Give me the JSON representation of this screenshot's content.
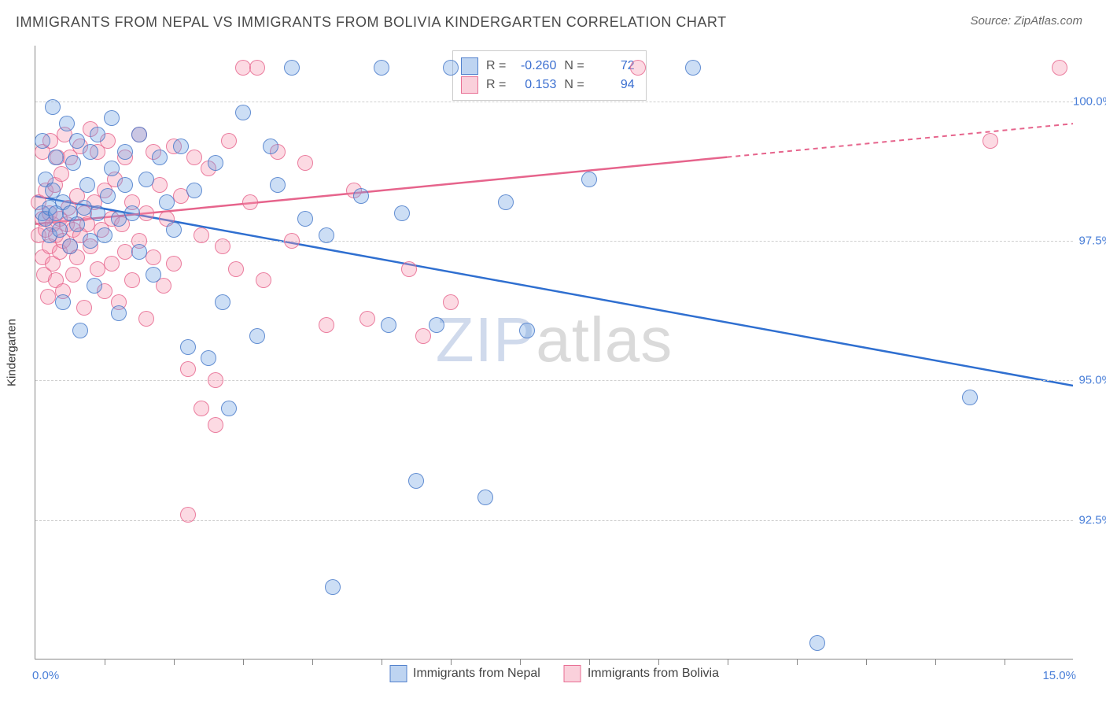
{
  "title": "IMMIGRANTS FROM NEPAL VS IMMIGRANTS FROM BOLIVIA KINDERGARTEN CORRELATION CHART",
  "source": "Source: ZipAtlas.com",
  "yaxis_title": "Kindergarten",
  "watermark_prefix": "ZIP",
  "watermark_suffix": "atlas",
  "chart": {
    "type": "scatter",
    "xlim": [
      0.0,
      15.0
    ],
    "ylim": [
      90.0,
      101.0
    ],
    "x_end_labels": [
      "0.0%",
      "15.0%"
    ],
    "y_ticks": [
      92.5,
      95.0,
      97.5,
      100.0
    ],
    "y_tick_labels": [
      "92.5%",
      "95.0%",
      "97.5%",
      "100.0%"
    ],
    "x_minor_ticks": [
      1,
      2,
      3,
      4,
      5,
      6,
      7,
      8,
      9,
      10,
      11,
      12,
      13,
      14
    ],
    "background_color": "#ffffff",
    "grid_color": "#d0d0d0",
    "series": [
      {
        "name": "Immigrants from Nepal",
        "color_fill": "rgba(110,160,225,0.35)",
        "color_stroke": "#4a7fd8",
        "marker_radius_px": 10,
        "R": "-0.260",
        "N": "72",
        "trend": {
          "y_at_x0": 98.3,
          "y_at_x15": 94.9,
          "dashed_from_x": null
        },
        "points": [
          [
            0.1,
            98.0
          ],
          [
            0.1,
            99.3
          ],
          [
            0.15,
            98.6
          ],
          [
            0.15,
            97.9
          ],
          [
            0.2,
            98.1
          ],
          [
            0.2,
            97.6
          ],
          [
            0.25,
            99.9
          ],
          [
            0.25,
            98.4
          ],
          [
            0.3,
            98.0
          ],
          [
            0.3,
            99.0
          ],
          [
            0.35,
            97.7
          ],
          [
            0.4,
            98.2
          ],
          [
            0.4,
            96.4
          ],
          [
            0.45,
            99.6
          ],
          [
            0.5,
            98.0
          ],
          [
            0.5,
            97.4
          ],
          [
            0.55,
            98.9
          ],
          [
            0.6,
            99.3
          ],
          [
            0.6,
            97.8
          ],
          [
            0.65,
            95.9
          ],
          [
            0.7,
            98.1
          ],
          [
            0.75,
            98.5
          ],
          [
            0.8,
            99.1
          ],
          [
            0.8,
            97.5
          ],
          [
            0.85,
            96.7
          ],
          [
            0.9,
            99.4
          ],
          [
            0.9,
            98.0
          ],
          [
            1.0,
            97.6
          ],
          [
            1.05,
            98.3
          ],
          [
            1.1,
            98.8
          ],
          [
            1.1,
            99.7
          ],
          [
            1.2,
            96.2
          ],
          [
            1.2,
            97.9
          ],
          [
            1.3,
            99.1
          ],
          [
            1.3,
            98.5
          ],
          [
            1.4,
            98.0
          ],
          [
            1.5,
            99.4
          ],
          [
            1.5,
            97.3
          ],
          [
            1.6,
            98.6
          ],
          [
            1.7,
            96.9
          ],
          [
            1.8,
            99.0
          ],
          [
            1.9,
            98.2
          ],
          [
            2.0,
            97.7
          ],
          [
            2.1,
            99.2
          ],
          [
            2.2,
            95.6
          ],
          [
            2.3,
            98.4
          ],
          [
            2.5,
            95.4
          ],
          [
            2.6,
            98.9
          ],
          [
            2.7,
            96.4
          ],
          [
            2.8,
            94.5
          ],
          [
            3.0,
            99.8
          ],
          [
            3.2,
            95.8
          ],
          [
            3.4,
            99.2
          ],
          [
            3.5,
            98.5
          ],
          [
            3.7,
            100.6
          ],
          [
            3.9,
            97.9
          ],
          [
            4.2,
            97.6
          ],
          [
            4.3,
            91.3
          ],
          [
            4.7,
            98.3
          ],
          [
            5.0,
            100.6
          ],
          [
            5.1,
            96.0
          ],
          [
            5.3,
            98.0
          ],
          [
            5.5,
            93.2
          ],
          [
            5.8,
            96.0
          ],
          [
            6.0,
            100.6
          ],
          [
            6.5,
            92.9
          ],
          [
            6.8,
            98.2
          ],
          [
            7.1,
            95.9
          ],
          [
            8.0,
            98.6
          ],
          [
            9.5,
            100.6
          ],
          [
            11.3,
            90.3
          ],
          [
            13.5,
            94.7
          ]
        ]
      },
      {
        "name": "Immigrants from Bolivia",
        "color_fill": "rgba(245,150,175,0.35)",
        "color_stroke": "#e6648c",
        "marker_radius_px": 10,
        "R": "0.153",
        "N": "94",
        "trend": {
          "y_at_x0": 97.8,
          "y_at_x15": 99.6,
          "dashed_from_x": 10.0
        },
        "points": [
          [
            0.05,
            97.6
          ],
          [
            0.05,
            98.2
          ],
          [
            0.1,
            97.9
          ],
          [
            0.1,
            97.2
          ],
          [
            0.1,
            99.1
          ],
          [
            0.12,
            96.9
          ],
          [
            0.15,
            97.7
          ],
          [
            0.15,
            98.4
          ],
          [
            0.18,
            96.5
          ],
          [
            0.2,
            98.0
          ],
          [
            0.2,
            97.4
          ],
          [
            0.22,
            99.3
          ],
          [
            0.25,
            97.8
          ],
          [
            0.25,
            97.1
          ],
          [
            0.28,
            98.5
          ],
          [
            0.3,
            97.6
          ],
          [
            0.3,
            96.8
          ],
          [
            0.32,
            99.0
          ],
          [
            0.35,
            97.9
          ],
          [
            0.35,
            97.3
          ],
          [
            0.38,
            98.7
          ],
          [
            0.4,
            97.5
          ],
          [
            0.4,
            96.6
          ],
          [
            0.42,
            99.4
          ],
          [
            0.45,
            97.8
          ],
          [
            0.48,
            98.1
          ],
          [
            0.5,
            97.4
          ],
          [
            0.5,
            99.0
          ],
          [
            0.55,
            97.7
          ],
          [
            0.55,
            96.9
          ],
          [
            0.6,
            98.3
          ],
          [
            0.6,
            97.2
          ],
          [
            0.65,
            99.2
          ],
          [
            0.65,
            97.6
          ],
          [
            0.7,
            98.0
          ],
          [
            0.7,
            96.3
          ],
          [
            0.75,
            97.8
          ],
          [
            0.8,
            99.5
          ],
          [
            0.8,
            97.4
          ],
          [
            0.85,
            98.2
          ],
          [
            0.9,
            97.0
          ],
          [
            0.9,
            99.1
          ],
          [
            0.95,
            97.7
          ],
          [
            1.0,
            98.4
          ],
          [
            1.0,
            96.6
          ],
          [
            1.05,
            99.3
          ],
          [
            1.1,
            97.9
          ],
          [
            1.1,
            97.1
          ],
          [
            1.15,
            98.6
          ],
          [
            1.2,
            96.4
          ],
          [
            1.25,
            97.8
          ],
          [
            1.3,
            99.0
          ],
          [
            1.3,
            97.3
          ],
          [
            1.4,
            98.2
          ],
          [
            1.4,
            96.8
          ],
          [
            1.5,
            99.4
          ],
          [
            1.5,
            97.5
          ],
          [
            1.6,
            98.0
          ],
          [
            1.6,
            96.1
          ],
          [
            1.7,
            99.1
          ],
          [
            1.7,
            97.2
          ],
          [
            1.8,
            98.5
          ],
          [
            1.85,
            96.7
          ],
          [
            1.9,
            97.9
          ],
          [
            2.0,
            99.2
          ],
          [
            2.0,
            97.1
          ],
          [
            2.1,
            98.3
          ],
          [
            2.2,
            95.2
          ],
          [
            2.2,
            92.6
          ],
          [
            2.3,
            99.0
          ],
          [
            2.4,
            97.6
          ],
          [
            2.4,
            94.5
          ],
          [
            2.5,
            98.8
          ],
          [
            2.6,
            95.0
          ],
          [
            2.6,
            94.2
          ],
          [
            2.7,
            97.4
          ],
          [
            2.8,
            99.3
          ],
          [
            2.9,
            97.0
          ],
          [
            3.0,
            100.6
          ],
          [
            3.1,
            98.2
          ],
          [
            3.2,
            100.6
          ],
          [
            3.3,
            96.8
          ],
          [
            3.5,
            99.1
          ],
          [
            3.7,
            97.5
          ],
          [
            3.9,
            98.9
          ],
          [
            4.2,
            96.0
          ],
          [
            4.6,
            98.4
          ],
          [
            4.8,
            96.1
          ],
          [
            5.4,
            97.0
          ],
          [
            5.6,
            95.8
          ],
          [
            6.0,
            96.4
          ],
          [
            8.7,
            100.6
          ],
          [
            13.8,
            99.3
          ],
          [
            14.8,
            100.6
          ]
        ]
      }
    ]
  },
  "legend_top": {
    "r_label": "R =",
    "n_label": "N ="
  },
  "legend_bottom": [
    "Immigrants from Nepal",
    "Immigrants from Bolivia"
  ]
}
